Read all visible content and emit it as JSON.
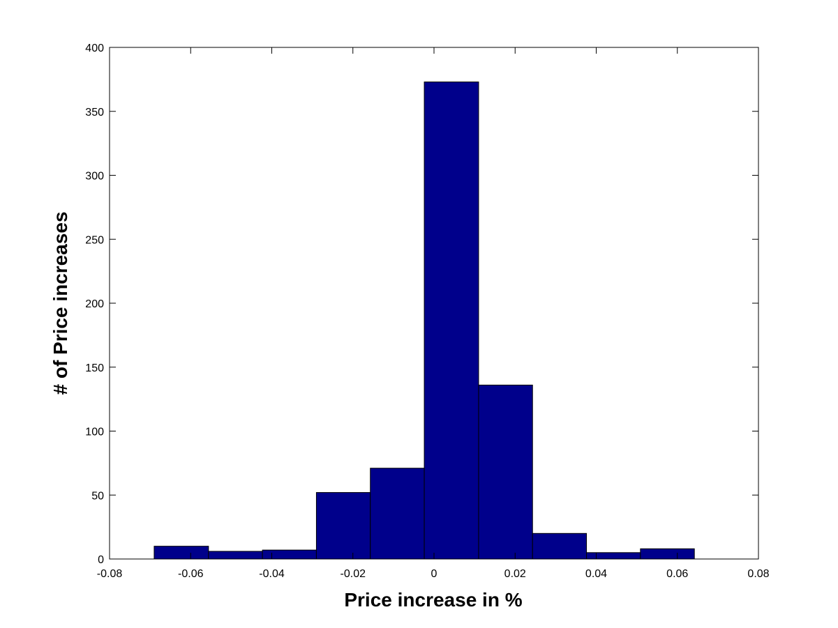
{
  "chart_data": {
    "type": "bar",
    "title": "",
    "xlabel": "Price increase in %",
    "ylabel": "# of Price increases",
    "xlim": [
      -0.08,
      0.08
    ],
    "ylim": [
      0,
      400
    ],
    "x_ticks": [
      "-0.08",
      "-0.06",
      "-0.04",
      "-0.02",
      "0",
      "0.02",
      "0.04",
      "0.06",
      "0.08"
    ],
    "y_ticks": [
      "0",
      "50",
      "100",
      "150",
      "200",
      "250",
      "300",
      "350",
      "400"
    ],
    "bins": [
      {
        "x0": -0.069,
        "x1": -0.0556,
        "value": 10
      },
      {
        "x0": -0.0556,
        "x1": -0.0423,
        "value": 6
      },
      {
        "x0": -0.0423,
        "x1": -0.029,
        "value": 7
      },
      {
        "x0": -0.029,
        "x1": -0.0157,
        "value": 52
      },
      {
        "x0": -0.0157,
        "x1": -0.0024,
        "value": 71
      },
      {
        "x0": -0.0024,
        "x1": 0.011,
        "value": 373
      },
      {
        "x0": 0.011,
        "x1": 0.0243,
        "value": 136
      },
      {
        "x0": 0.0243,
        "x1": 0.0376,
        "value": 20
      },
      {
        "x0": 0.0376,
        "x1": 0.0509,
        "value": 5
      },
      {
        "x0": 0.0509,
        "x1": 0.0642,
        "value": 8
      }
    ],
    "grid": false,
    "bar_color": "#00008b"
  }
}
